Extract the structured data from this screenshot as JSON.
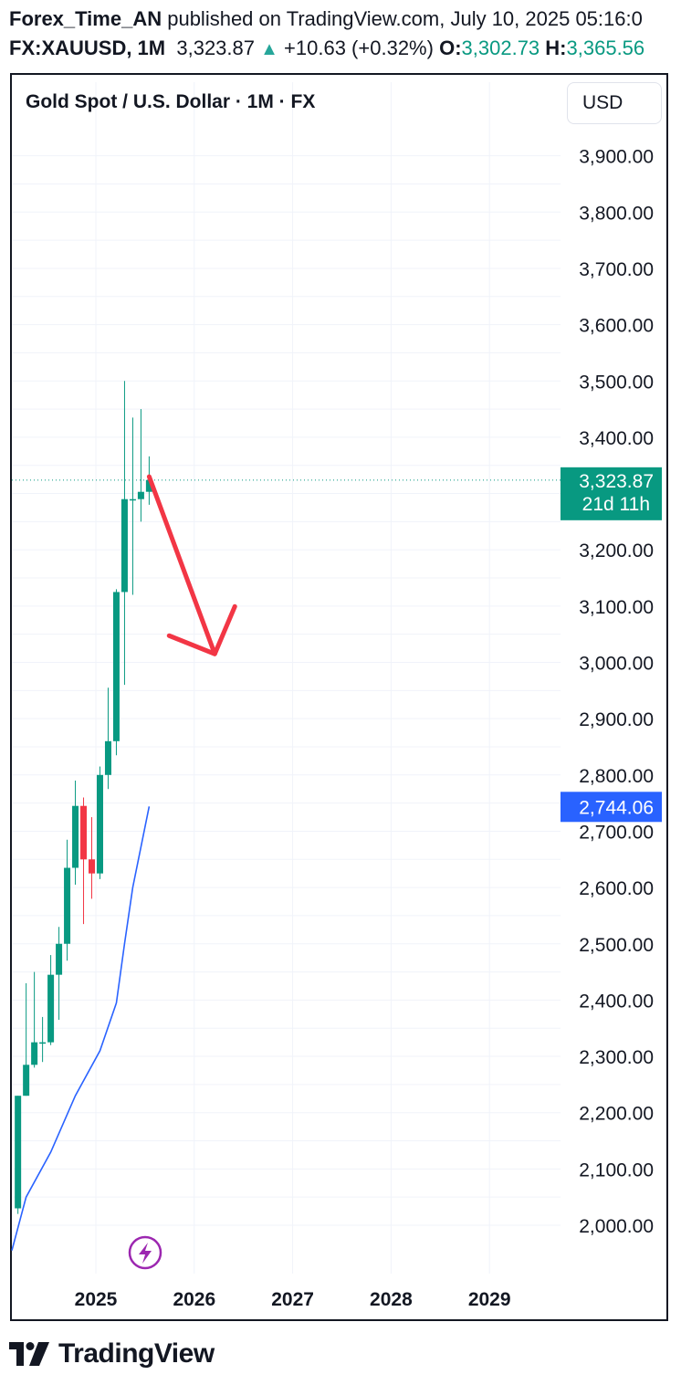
{
  "header": {
    "author": "Forex_Time_AN",
    "published_text": " published on TradingView.com, July 10, 2025 05:16:0",
    "symbol": "FX:XAUUSD, 1M",
    "price": "3,323.87",
    "change": "+10.63 (+0.32%)",
    "open_label": "O:",
    "open_value": "3,302.73",
    "high_label": "H:",
    "high_value": "3,365.56"
  },
  "chart_title": "Gold Spot / U.S. Dollar · 1M · FX",
  "currency_button": "USD",
  "last_price_badge": {
    "price": "3,323.87",
    "countdown": "21d 11h",
    "color": "#089981"
  },
  "ma_badge": {
    "value": "2,744.06",
    "color": "#2962ff"
  },
  "logo_text": "TradingView",
  "colors": {
    "up": "#089981",
    "down": "#f23645",
    "ma_line": "#2962ff",
    "arrow": "#f23645",
    "grid": "#f0f3fa"
  },
  "chart_data": {
    "type": "candlestick",
    "interval": "1M",
    "ylim": [
      1940,
      4010
    ],
    "y_ticks": [
      "2,000.00",
      "2,100.00",
      "2,200.00",
      "2,300.00",
      "2,400.00",
      "2,500.00",
      "2,600.00",
      "2,700.00",
      "2,800.00",
      "2,900.00",
      "3,000.00",
      "3,100.00",
      "3,200.00",
      "3,300.00",
      "3,400.00",
      "3,500.00",
      "3,600.00",
      "3,700.00",
      "3,800.00",
      "3,900.00"
    ],
    "y_tick_values": [
      2000,
      2100,
      2200,
      2300,
      2400,
      2500,
      2600,
      2700,
      2800,
      2900,
      3000,
      3100,
      3200,
      3300,
      3400,
      3500,
      3600,
      3700,
      3800,
      3900
    ],
    "x_ticks": [
      "2025",
      "2026",
      "2027",
      "2028",
      "2029"
    ],
    "x_tick_years": [
      2025,
      2026,
      2027,
      2028,
      2029
    ],
    "grid": true,
    "candles": [
      {
        "m": "2024-03",
        "o": 2030,
        "h": 2230,
        "l": 2020,
        "c": 2230
      },
      {
        "m": "2024-04",
        "o": 2230,
        "h": 2430,
        "l": 2230,
        "c": 2285
      },
      {
        "m": "2024-05",
        "o": 2285,
        "h": 2450,
        "l": 2280,
        "c": 2325
      },
      {
        "m": "2024-06",
        "o": 2325,
        "h": 2370,
        "l": 2290,
        "c": 2325
      },
      {
        "m": "2024-07",
        "o": 2325,
        "h": 2480,
        "l": 2320,
        "c": 2445
      },
      {
        "m": "2024-08",
        "o": 2445,
        "h": 2530,
        "l": 2365,
        "c": 2500
      },
      {
        "m": "2024-09",
        "o": 2500,
        "h": 2685,
        "l": 2470,
        "c": 2635
      },
      {
        "m": "2024-10",
        "o": 2635,
        "h": 2790,
        "l": 2605,
        "c": 2745
      },
      {
        "m": "2024-11",
        "o": 2745,
        "h": 2760,
        "l": 2535,
        "c": 2650
      },
      {
        "m": "2024-12",
        "o": 2650,
        "h": 2725,
        "l": 2580,
        "c": 2625
      },
      {
        "m": "2025-01",
        "o": 2625,
        "h": 2815,
        "l": 2615,
        "c": 2800
      },
      {
        "m": "2025-02",
        "o": 2800,
        "h": 2955,
        "l": 2775,
        "c": 2860
      },
      {
        "m": "2025-03",
        "o": 2860,
        "h": 3130,
        "l": 2835,
        "c": 3125
      },
      {
        "m": "2025-04",
        "o": 3125,
        "h": 3500,
        "l": 2960,
        "c": 3290
      },
      {
        "m": "2025-05",
        "o": 3290,
        "h": 3435,
        "l": 3120,
        "c": 3290
      },
      {
        "m": "2025-06",
        "o": 3290,
        "h": 3450,
        "l": 3250,
        "c": 3303
      },
      {
        "m": "2025-07",
        "o": 3303,
        "h": 3366,
        "l": 3280,
        "c": 3324
      }
    ],
    "moving_average": [
      {
        "m": "2024-01",
        "v": 1955
      },
      {
        "m": "2024-04",
        "v": 2050
      },
      {
        "m": "2024-07",
        "v": 2130
      },
      {
        "m": "2024-10",
        "v": 2230
      },
      {
        "m": "2025-01",
        "v": 2310
      },
      {
        "m": "2025-03",
        "v": 2395
      },
      {
        "m": "2025-04",
        "v": 2500
      },
      {
        "m": "2025-05",
        "v": 2600
      },
      {
        "m": "2025-07",
        "v": 2744
      }
    ],
    "last_price": 3323.87,
    "ma_last": 2744.06,
    "annotation_arrow": {
      "from": {
        "m": "2025-07",
        "v": 3330
      },
      "to": {
        "m": "2026-03",
        "v": 3015
      }
    }
  }
}
